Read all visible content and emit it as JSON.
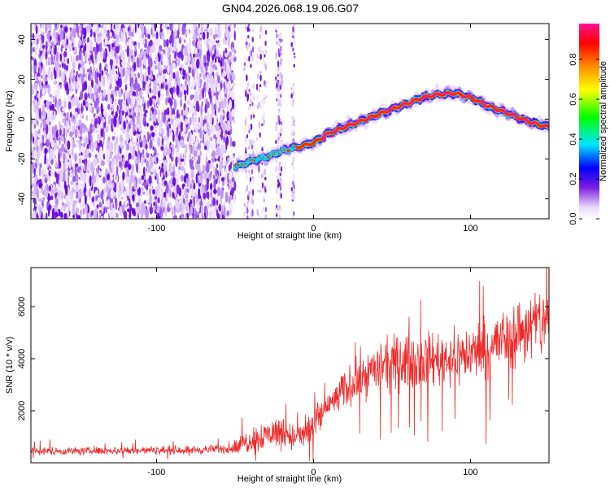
{
  "title": "GN04.2026.068.19.06.G07",
  "chart_data": [
    {
      "type": "heatmap",
      "xlabel": "Height of straight line (km)",
      "ylabel": "Frequency (Hz)",
      "xlim": [
        -180,
        150
      ],
      "ylim": [
        -50,
        48
      ],
      "x_ticks": [
        -100,
        0,
        100
      ],
      "y_ticks": [
        -40,
        -20,
        0,
        20,
        40
      ],
      "colorbar": {
        "label": "Normalized spectral amplitude",
        "range": [
          0,
          0.98
        ],
        "ticks": [
          0.0,
          0.2,
          0.4,
          0.6,
          0.8
        ],
        "colormap": [
          "#ffffff",
          "#e8d8fa",
          "#7b1fe0",
          "#0000ff",
          "#00e5ff",
          "#00ff00",
          "#ffff00",
          "#ff8c00",
          "#ff0000",
          "#ff1493"
        ]
      },
      "noise_region_x": [
        -180,
        -50
      ],
      "ridge": {
        "x": [
          -50,
          -40,
          -30,
          -20,
          -10,
          0,
          10,
          20,
          30,
          40,
          50,
          60,
          70,
          80,
          90,
          100,
          110,
          120,
          130,
          140,
          150
        ],
        "y": [
          -24,
          -21,
          -19,
          -16,
          -14,
          -12,
          -7,
          -4,
          -1,
          2,
          5,
          8,
          11,
          12.5,
          13,
          11,
          7,
          4,
          1,
          -2,
          -4
        ]
      }
    },
    {
      "type": "line",
      "xlabel": "Height of straight line (km)",
      "ylabel": "SNR (10 * v/v)",
      "xlim": [
        -180,
        150
      ],
      "ylim": [
        0,
        7500
      ],
      "x_ticks": [
        -100,
        0,
        100
      ],
      "y_ticks": [
        2000,
        4000,
        6000
      ],
      "color": "#ee2b2b",
      "envelope": {
        "x": [
          -180,
          -150,
          -100,
          -70,
          -50,
          -40,
          -30,
          -20,
          -10,
          0,
          10,
          20,
          30,
          40,
          50,
          60,
          70,
          80,
          90,
          100,
          110,
          120,
          130,
          140,
          150
        ],
        "y": [
          450,
          450,
          480,
          500,
          550,
          900,
          1100,
          1200,
          900,
          1500,
          2200,
          2800,
          3300,
          3600,
          3800,
          3900,
          3950,
          4000,
          4050,
          4200,
          4400,
          4700,
          5000,
          5300,
          5500
        ]
      }
    }
  ]
}
